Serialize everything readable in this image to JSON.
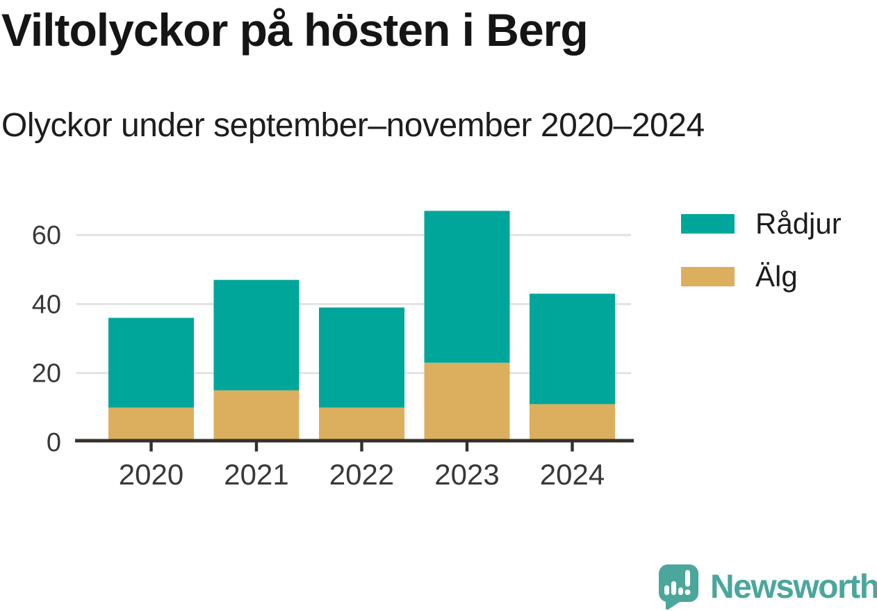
{
  "chart_data": {
    "type": "bar",
    "stacked": true,
    "title": "Viltolyckor på hösten i Berg",
    "subtitle": "Olyckor under september–november 2020–2024",
    "categories": [
      "2020",
      "2021",
      "2022",
      "2023",
      "2024"
    ],
    "series": [
      {
        "name": "Rådjur",
        "color": "#00a69a",
        "values": [
          26,
          32,
          29,
          44,
          32
        ]
      },
      {
        "name": "Älg",
        "color": "#dbaf5e",
        "values": [
          10,
          15,
          10,
          23,
          11
        ]
      }
    ],
    "stack_order_bottom_to_top": [
      "Älg",
      "Rådjur"
    ],
    "stack_totals": [
      36,
      47,
      39,
      67,
      43
    ],
    "xlabel": "",
    "ylabel": "",
    "yticks": [
      0,
      20,
      40,
      60
    ],
    "ylim": [
      0,
      70
    ],
    "grid": "horizontal-only",
    "legend_position": "top-right",
    "axis_color": "#34302b",
    "grid_color": "#e2e2e2",
    "tick_label_color": "#383838"
  },
  "branding": {
    "name": "Newsworthy",
    "color": "#4ba69c",
    "icon": "speech-bubble-with-bar-chart-and-exclamation"
  }
}
